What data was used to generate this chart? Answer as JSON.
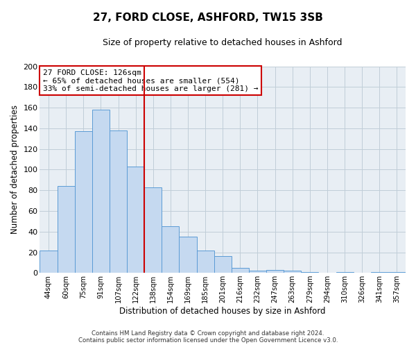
{
  "title": "27, FORD CLOSE, ASHFORD, TW15 3SB",
  "subtitle": "Size of property relative to detached houses in Ashford",
  "xlabel": "Distribution of detached houses by size in Ashford",
  "ylabel": "Number of detached properties",
  "categories": [
    "44sqm",
    "60sqm",
    "75sqm",
    "91sqm",
    "107sqm",
    "122sqm",
    "138sqm",
    "154sqm",
    "169sqm",
    "185sqm",
    "201sqm",
    "216sqm",
    "232sqm",
    "247sqm",
    "263sqm",
    "279sqm",
    "294sqm",
    "310sqm",
    "326sqm",
    "341sqm",
    "357sqm"
  ],
  "values": [
    22,
    84,
    137,
    158,
    138,
    103,
    83,
    45,
    35,
    22,
    16,
    5,
    2,
    3,
    2,
    1,
    0,
    1,
    0,
    1,
    1
  ],
  "bar_color": "#c5d9f0",
  "bar_edge_color": "#5b9bd5",
  "vline_x": 5.5,
  "vline_color": "#cc0000",
  "ylim": [
    0,
    200
  ],
  "yticks": [
    0,
    20,
    40,
    60,
    80,
    100,
    120,
    140,
    160,
    180,
    200
  ],
  "annotation_title": "27 FORD CLOSE: 126sqm",
  "annotation_line1": "← 65% of detached houses are smaller (554)",
  "annotation_line2": "33% of semi-detached houses are larger (281) →",
  "annotation_box_color": "#ffffff",
  "annotation_box_edge": "#cc0000",
  "footer_line1": "Contains HM Land Registry data © Crown copyright and database right 2024.",
  "footer_line2": "Contains public sector information licensed under the Open Government Licence v3.0.",
  "background_color": "#e8eef4",
  "plot_background": "#ffffff",
  "grid_color": "#c0cdd8"
}
